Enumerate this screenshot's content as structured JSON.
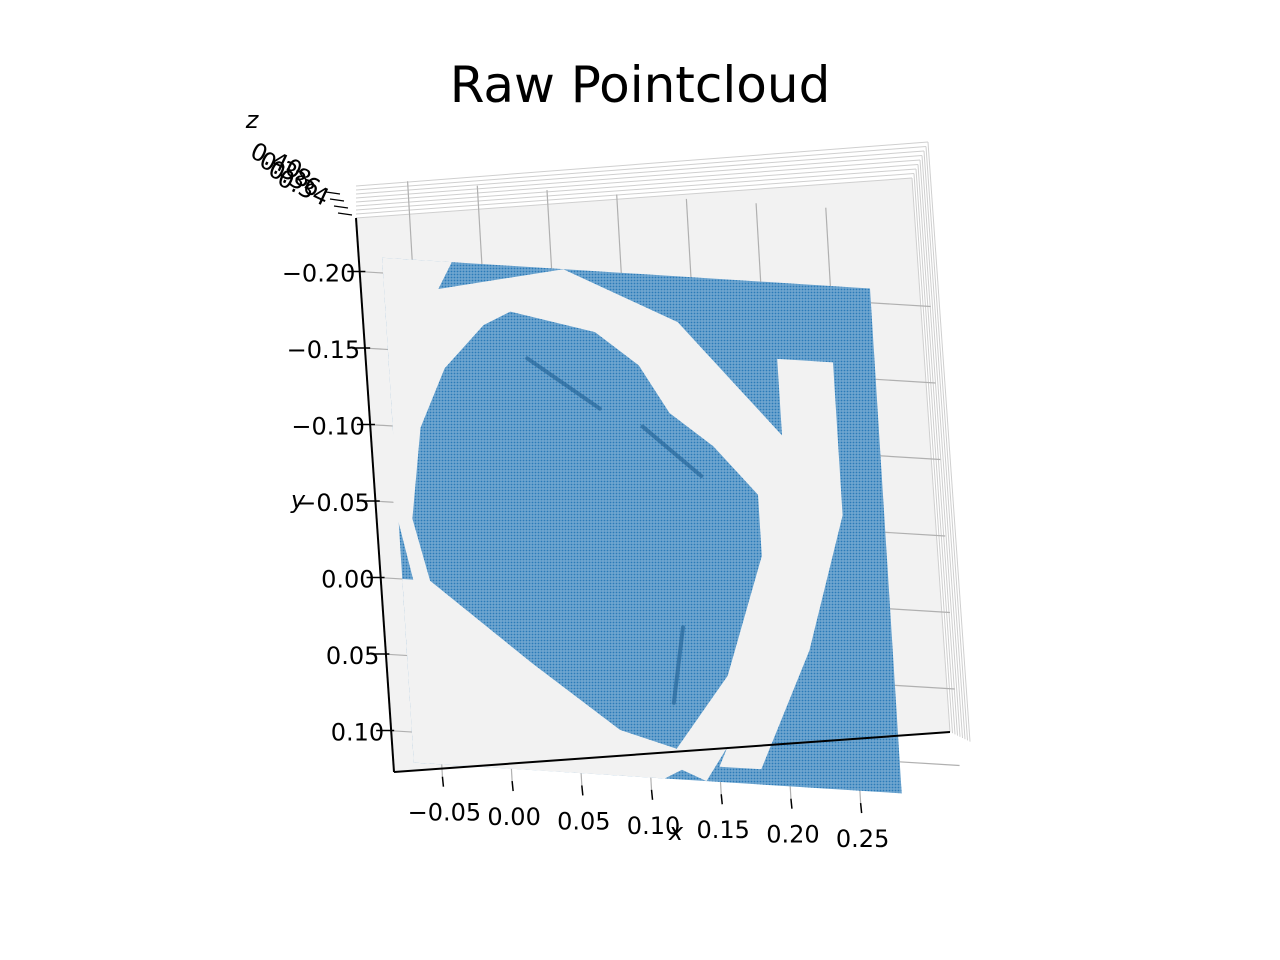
{
  "chart_data": {
    "type": "scatter",
    "projection": "3d",
    "title": "Raw Pointcloud",
    "xlabel": "x",
    "ylabel": "y",
    "zlabel": "z",
    "x_ticks": [
      "−0.05",
      "0.00",
      "0.05",
      "0.10",
      "0.15",
      "0.20",
      "0.25"
    ],
    "y_ticks": [
      "−0.20",
      "−0.15",
      "−0.10",
      "−0.05",
      "0.00",
      "0.05",
      "0.10"
    ],
    "z_ticks": [
      "0.34",
      "0.36",
      "0.38",
      "0.40"
    ],
    "grid": true,
    "point_color": "#1f77b4",
    "pane_color": "#f2f2f2",
    "regions": {
      "outer_sheet": [
        [
          -0.07,
          -0.21
        ],
        [
          0.28,
          -0.21
        ],
        [
          0.28,
          0.12
        ],
        [
          -0.07,
          0.12
        ]
      ],
      "inner_object": [
        [
          0.0,
          -0.17
        ],
        [
          0.02,
          -0.18
        ],
        [
          0.08,
          -0.17
        ],
        [
          0.11,
          -0.15
        ],
        [
          0.13,
          -0.12
        ],
        [
          0.16,
          -0.1
        ],
        [
          0.19,
          -0.07
        ],
        [
          0.19,
          -0.03
        ],
        [
          0.16,
          0.05
        ],
        [
          0.12,
          0.1
        ],
        [
          0.08,
          0.09
        ],
        [
          0.02,
          0.05
        ],
        [
          -0.05,
          0.0
        ],
        [
          -0.06,
          -0.04
        ],
        [
          -0.05,
          -0.1
        ],
        [
          -0.03,
          -0.14
        ]
      ],
      "left_gap": [
        [
          -0.07,
          -0.21
        ],
        [
          -0.02,
          -0.21
        ],
        [
          -0.05,
          -0.16
        ],
        [
          -0.06,
          -0.1
        ],
        [
          -0.07,
          -0.08
        ]
      ],
      "right_gap": [
        [
          0.21,
          -0.16
        ],
        [
          0.25,
          -0.16
        ],
        [
          0.25,
          -0.06
        ],
        [
          0.22,
          0.03
        ],
        [
          0.18,
          0.11
        ],
        [
          0.15,
          0.11
        ],
        [
          0.19,
          0.03
        ],
        [
          0.21,
          -0.06
        ]
      ],
      "bottom_gap": [
        [
          -0.07,
          0.0
        ],
        [
          -0.05,
          0.0
        ],
        [
          0.05,
          0.07
        ],
        [
          0.12,
          0.1
        ],
        [
          0.13,
          0.11
        ],
        [
          0.11,
          0.12
        ],
        [
          -0.07,
          0.12
        ]
      ]
    }
  }
}
